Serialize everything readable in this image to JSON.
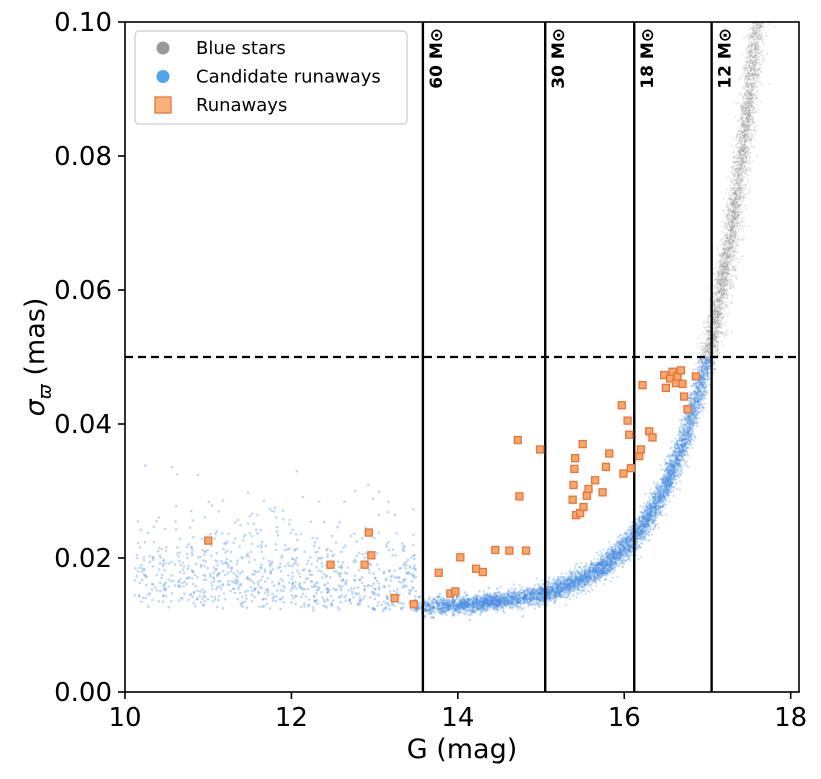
{
  "chart_data": {
    "type": "scatter",
    "xlabel": "G (mag)",
    "ylabel_symbol": "σ",
    "ylabel_subscript": "ϖ",
    "ylabel_unit": "(mas)",
    "xlim": [
      10,
      18.1
    ],
    "ylim": [
      0.0,
      0.1
    ],
    "xticks": [
      10,
      12,
      14,
      16,
      18
    ],
    "xtick_labels": [
      "10",
      "12",
      "14",
      "16",
      "18"
    ],
    "yticks": [
      0.0,
      0.02,
      0.04,
      0.06,
      0.08,
      0.1
    ],
    "ytick_labels": [
      "0.00",
      "0.02",
      "0.04",
      "0.06",
      "0.08",
      "0.10"
    ],
    "threshold_line": {
      "y": 0.05,
      "style": "dashed"
    },
    "mass_lines": [
      {
        "x": 13.58,
        "label": "60 M⊙"
      },
      {
        "x": 15.05,
        "label": "30 M⊙"
      },
      {
        "x": 16.12,
        "label": "18 M⊙"
      },
      {
        "x": 17.05,
        "label": "12 M⊙"
      }
    ],
    "legend": {
      "position": "upper-left",
      "entries": [
        {
          "label": "Blue stars",
          "marker": "circle",
          "color": "#999999"
        },
        {
          "label": "Candidate runaways",
          "marker": "circle",
          "color": "#4fa3ef"
        },
        {
          "label": "Runaways",
          "marker": "square",
          "color": "#f7b27a"
        }
      ]
    },
    "series": [
      {
        "name": "Blue stars",
        "color": "#8c8c8c",
        "description": "dense cloud, sigma ~ 0.0125 + 0.0375*exp((G-17)/0.7), extending up to 0.10 at G~18"
      },
      {
        "name": "Candidate runaways",
        "color": "#4a90e2",
        "description": "same relation restricted to sigma < 0.05"
      },
      {
        "name": "Runaways",
        "color": "#f7a86a",
        "edge_color": "#e8743b",
        "points": [
          [
            11.0,
            0.0226
          ],
          [
            12.47,
            0.019
          ],
          [
            12.88,
            0.019
          ],
          [
            12.93,
            0.0238
          ],
          [
            12.96,
            0.0204
          ],
          [
            13.24,
            0.014
          ],
          [
            13.47,
            0.0131
          ],
          [
            13.77,
            0.0178
          ],
          [
            13.91,
            0.0147
          ],
          [
            13.97,
            0.015
          ],
          [
            14.03,
            0.0201
          ],
          [
            14.22,
            0.0184
          ],
          [
            14.3,
            0.0179
          ],
          [
            14.45,
            0.0212
          ],
          [
            14.62,
            0.0211
          ],
          [
            14.72,
            0.0376
          ],
          [
            14.74,
            0.0292
          ],
          [
            14.82,
            0.0211
          ],
          [
            14.99,
            0.0362
          ],
          [
            15.38,
            0.0287
          ],
          [
            15.39,
            0.0309
          ],
          [
            15.4,
            0.0333
          ],
          [
            15.41,
            0.0349
          ],
          [
            15.42,
            0.0264
          ],
          [
            15.47,
            0.0267
          ],
          [
            15.5,
            0.037
          ],
          [
            15.51,
            0.0276
          ],
          [
            15.55,
            0.0293
          ],
          [
            15.57,
            0.0303
          ],
          [
            15.65,
            0.0316
          ],
          [
            15.74,
            0.0298
          ],
          [
            15.78,
            0.0336
          ],
          [
            15.82,
            0.0356
          ],
          [
            15.97,
            0.0428
          ],
          [
            15.99,
            0.0326
          ],
          [
            16.04,
            0.0405
          ],
          [
            16.06,
            0.0384
          ],
          [
            16.08,
            0.0334
          ],
          [
            16.18,
            0.0352
          ],
          [
            16.2,
            0.0362
          ],
          [
            16.22,
            0.0458
          ],
          [
            16.3,
            0.0389
          ],
          [
            16.34,
            0.038
          ],
          [
            16.48,
            0.0473
          ],
          [
            16.5,
            0.0454
          ],
          [
            16.55,
            0.0468
          ],
          [
            16.58,
            0.0478
          ],
          [
            16.62,
            0.0461
          ],
          [
            16.64,
            0.0471
          ],
          [
            16.68,
            0.048
          ],
          [
            16.7,
            0.046
          ],
          [
            16.72,
            0.0441
          ],
          [
            16.76,
            0.0422
          ],
          [
            16.86,
            0.0471
          ]
        ]
      }
    ]
  }
}
